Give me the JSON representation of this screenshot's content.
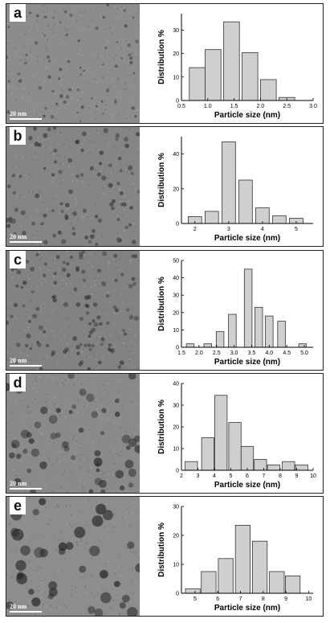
{
  "panels": [
    {
      "letter": "a",
      "scale_label": "20 nm"
    },
    {
      "letter": "b",
      "scale_label": "20 nm"
    },
    {
      "letter": "c",
      "scale_label": "20 nm"
    },
    {
      "letter": "d",
      "scale_label": "20 nm"
    },
    {
      "letter": "e",
      "scale_label": "20 nm"
    }
  ],
  "chart_data": [
    {
      "type": "bar",
      "xlabel": "Particle size (nm)",
      "ylabel": "Distribution %",
      "xlim": [
        0.5,
        3.0
      ],
      "ylim": [
        0,
        37
      ],
      "xticks": [
        0.5,
        1.0,
        1.5,
        2.0,
        2.5,
        3.0
      ],
      "xtick_labels": [
        "0.5",
        "1.0",
        "1.5",
        "2.0",
        "2.5",
        "3.0"
      ],
      "yticks": [
        0,
        10,
        20,
        30
      ],
      "ytick_labels": [
        "0",
        "10",
        "20",
        "30"
      ],
      "bin_width": 0.3,
      "x": [
        0.8,
        1.1,
        1.45,
        1.8,
        2.15,
        2.5
      ],
      "values": [
        14,
        21.7,
        33.5,
        20.4,
        8.9,
        1.3
      ]
    },
    {
      "type": "bar",
      "xlabel": "Particle size (nm)",
      "ylabel": "Distribution %",
      "xlim": [
        1.6,
        5.5
      ],
      "ylim": [
        0,
        50
      ],
      "xticks": [
        2,
        3,
        4,
        5
      ],
      "xtick_labels": [
        "2",
        "3",
        "4",
        "5"
      ],
      "yticks": [
        0,
        20,
        40
      ],
      "ytick_labels": [
        "0",
        "20",
        "40"
      ],
      "bin_width": 0.4,
      "x": [
        2.0,
        2.5,
        3.0,
        3.5,
        4.0,
        4.5,
        5.0
      ],
      "values": [
        4,
        7,
        47,
        25,
        9,
        4.5,
        3
      ]
    },
    {
      "type": "bar",
      "xlabel": "Particle size (nm)",
      "ylabel": "Distribution %",
      "xlim": [
        1.5,
        5.25
      ],
      "ylim": [
        0,
        50
      ],
      "xticks": [
        1.5,
        2.0,
        2.5,
        3.0,
        3.5,
        4.0,
        4.5,
        5.0
      ],
      "xtick_labels": [
        "1.5",
        "2.0",
        "2.5",
        "3.0",
        "3.5",
        "4.0",
        "4.5",
        "5.0"
      ],
      "yticks": [
        0,
        10,
        20,
        30,
        40,
        50
      ],
      "ytick_labels": [
        "0",
        "10",
        "20",
        "30",
        "40",
        "50"
      ],
      "bin_width": 0.22,
      "x": [
        1.75,
        2.25,
        2.6,
        2.95,
        3.4,
        3.7,
        4.0,
        4.35,
        4.95
      ],
      "values": [
        2,
        2,
        9,
        19,
        45,
        23,
        18,
        15,
        2
      ]
    },
    {
      "type": "bar",
      "xlabel": "Particle size (nm)",
      "ylabel": "Distribution %",
      "xlim": [
        2,
        10
      ],
      "ylim": [
        0,
        40
      ],
      "xticks": [
        2,
        3,
        4,
        5,
        6,
        7,
        8,
        9,
        10
      ],
      "xtick_labels": [
        "2",
        "3",
        "4",
        "5",
        "6",
        "7",
        "8",
        "9",
        "10"
      ],
      "yticks": [
        0,
        10,
        20,
        30,
        40
      ],
      "ytick_labels": [
        "0",
        "10",
        "20",
        "30",
        "40"
      ],
      "bin_width": 0.75,
      "x": [
        2.6,
        3.6,
        4.4,
        5.25,
        6.0,
        6.8,
        7.6,
        8.5,
        9.3
      ],
      "values": [
        4,
        15,
        34.5,
        22,
        11,
        5,
        2.5,
        4,
        2.5
      ]
    },
    {
      "type": "bar",
      "xlabel": "Particle size (nm)",
      "ylabel": "Distribution %",
      "xlim": [
        4.4,
        10.2
      ],
      "ylim": [
        0,
        30
      ],
      "xticks": [
        5,
        6,
        7,
        8,
        9,
        10
      ],
      "xtick_labels": [
        "5",
        "6",
        "7",
        "8",
        "9",
        "10"
      ],
      "yticks": [
        0,
        10,
        20,
        30
      ],
      "ytick_labels": [
        "0",
        "10",
        "20",
        "30"
      ],
      "bin_width": 0.65,
      "x": [
        4.9,
        5.6,
        6.35,
        7.1,
        7.85,
        8.6,
        9.3
      ],
      "values": [
        1.5,
        7.5,
        12,
        23.5,
        18,
        7.5,
        6
      ]
    }
  ]
}
